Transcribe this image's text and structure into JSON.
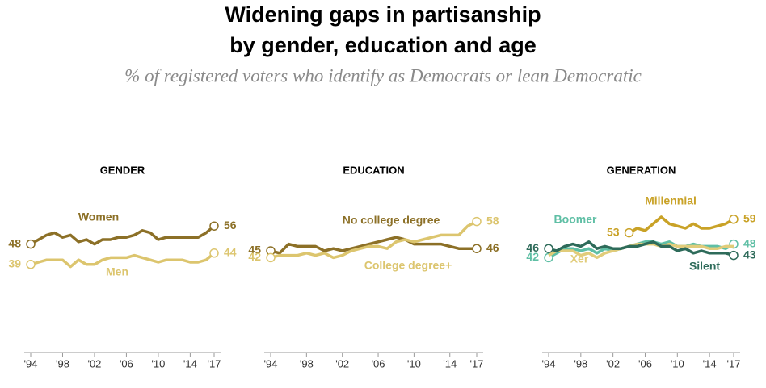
{
  "title_lines": [
    "Widening gaps in partisanship",
    "by gender, education and age"
  ],
  "subtitle": "% of registered voters who identify as Democrats or lean Democratic",
  "chart_data": [
    {
      "type": "line",
      "title": "GENDER",
      "x": [
        1994,
        1995,
        1996,
        1997,
        1998,
        1999,
        2000,
        2001,
        2002,
        2003,
        2004,
        2005,
        2006,
        2007,
        2008,
        2009,
        2010,
        2011,
        2012,
        2013,
        2014,
        2015,
        2016,
        2017
      ],
      "series": [
        {
          "name": "Women",
          "color": "#8c7027",
          "values": [
            48,
            50,
            52,
            53,
            51,
            52,
            49,
            50,
            48,
            50,
            50,
            51,
            51,
            52,
            54,
            53,
            50,
            51,
            51,
            51,
            51,
            51,
            53,
            56
          ]
        },
        {
          "name": "Men",
          "color": "#dcc56e",
          "values": [
            39,
            40,
            41,
            41,
            41,
            38,
            41,
            39,
            39,
            41,
            42,
            42,
            42,
            43,
            42,
            41,
            40,
            41,
            41,
            41,
            40,
            40,
            41,
            44
          ]
        }
      ],
      "ylim": [
        0,
        70
      ],
      "xlim": [
        1994,
        2017
      ],
      "xticks": [
        {
          "value": 1994,
          "label": "'94"
        },
        {
          "value": 1998,
          "label": "'98"
        },
        {
          "value": 2002,
          "label": "'02"
        },
        {
          "value": 2006,
          "label": "'06"
        },
        {
          "value": 2010,
          "label": "'10"
        },
        {
          "value": 2014,
          "label": "'14"
        },
        {
          "value": 2017,
          "label": "'17"
        }
      ]
    },
    {
      "type": "line",
      "title": "EDUCATION",
      "x": [
        1994,
        1995,
        1996,
        1997,
        1998,
        1999,
        2000,
        2001,
        2002,
        2003,
        2004,
        2005,
        2006,
        2007,
        2008,
        2009,
        2010,
        2011,
        2012,
        2013,
        2014,
        2015,
        2016,
        2017
      ],
      "series": [
        {
          "name": "No college degree",
          "color": "#8c7027",
          "values": [
            45,
            44,
            48,
            47,
            47,
            47,
            45,
            46,
            45,
            46,
            47,
            48,
            49,
            50,
            51,
            50,
            48,
            48,
            48,
            48,
            47,
            46,
            46,
            46
          ]
        },
        {
          "name": "College degree+",
          "color": "#dcc56e",
          "values": [
            42,
            43,
            43,
            43,
            44,
            43,
            44,
            42,
            43,
            45,
            46,
            47,
            47,
            46,
            49,
            50,
            49,
            50,
            51,
            52,
            52,
            52,
            56,
            58
          ]
        }
      ],
      "ylim": [
        0,
        70
      ],
      "xlim": [
        1994,
        2017
      ],
      "xticks": [
        {
          "value": 1994,
          "label": "'94"
        },
        {
          "value": 1998,
          "label": "'98"
        },
        {
          "value": 2002,
          "label": "'02"
        },
        {
          "value": 2006,
          "label": "'06"
        },
        {
          "value": 2010,
          "label": "'10"
        },
        {
          "value": 2014,
          "label": "'14"
        },
        {
          "value": 2017,
          "label": "'17"
        }
      ]
    },
    {
      "type": "line",
      "title": "GENERATION",
      "x": [
        1994,
        1995,
        1996,
        1997,
        1998,
        1999,
        2000,
        2001,
        2002,
        2003,
        2004,
        2005,
        2006,
        2007,
        2008,
        2009,
        2010,
        2011,
        2012,
        2013,
        2014,
        2015,
        2016,
        2017
      ],
      "series": [
        {
          "name": "Millennial",
          "color": "#c9a227",
          "values": [
            null,
            null,
            null,
            null,
            null,
            null,
            null,
            null,
            null,
            null,
            53,
            55,
            54,
            57,
            60,
            57,
            56,
            55,
            57,
            55,
            55,
            56,
            57,
            59
          ]
        },
        {
          "name": "Boomer",
          "color": "#5fbfa5",
          "values": [
            42,
            44,
            46,
            46,
            45,
            46,
            44,
            46,
            45,
            46,
            47,
            48,
            49,
            49,
            48,
            49,
            47,
            47,
            48,
            47,
            47,
            47,
            46,
            48
          ]
        },
        {
          "name": "Xer",
          "color": "#e1cc7a",
          "values": [
            43,
            45,
            45,
            45,
            43,
            44,
            42,
            44,
            45,
            46,
            47,
            48,
            48,
            48,
            47,
            48,
            47,
            47,
            47,
            47,
            46,
            46,
            47,
            47
          ]
        },
        {
          "name": "Silent",
          "color": "#2e6b5a",
          "values": [
            46,
            45,
            47,
            48,
            47,
            49,
            46,
            47,
            46,
            46,
            47,
            47,
            48,
            49,
            47,
            47,
            45,
            46,
            44,
            45,
            44,
            44,
            44,
            43
          ]
        }
      ],
      "ylim": [
        0,
        70
      ],
      "xlim": [
        1994,
        2017
      ],
      "xticks": [
        {
          "value": 1994,
          "label": "'94"
        },
        {
          "value": 1998,
          "label": "'98"
        },
        {
          "value": 2002,
          "label": "'02"
        },
        {
          "value": 2006,
          "label": "'06"
        },
        {
          "value": 2010,
          "label": "'10"
        },
        {
          "value": 2014,
          "label": "'14"
        },
        {
          "value": 2017,
          "label": "'17"
        }
      ]
    }
  ]
}
